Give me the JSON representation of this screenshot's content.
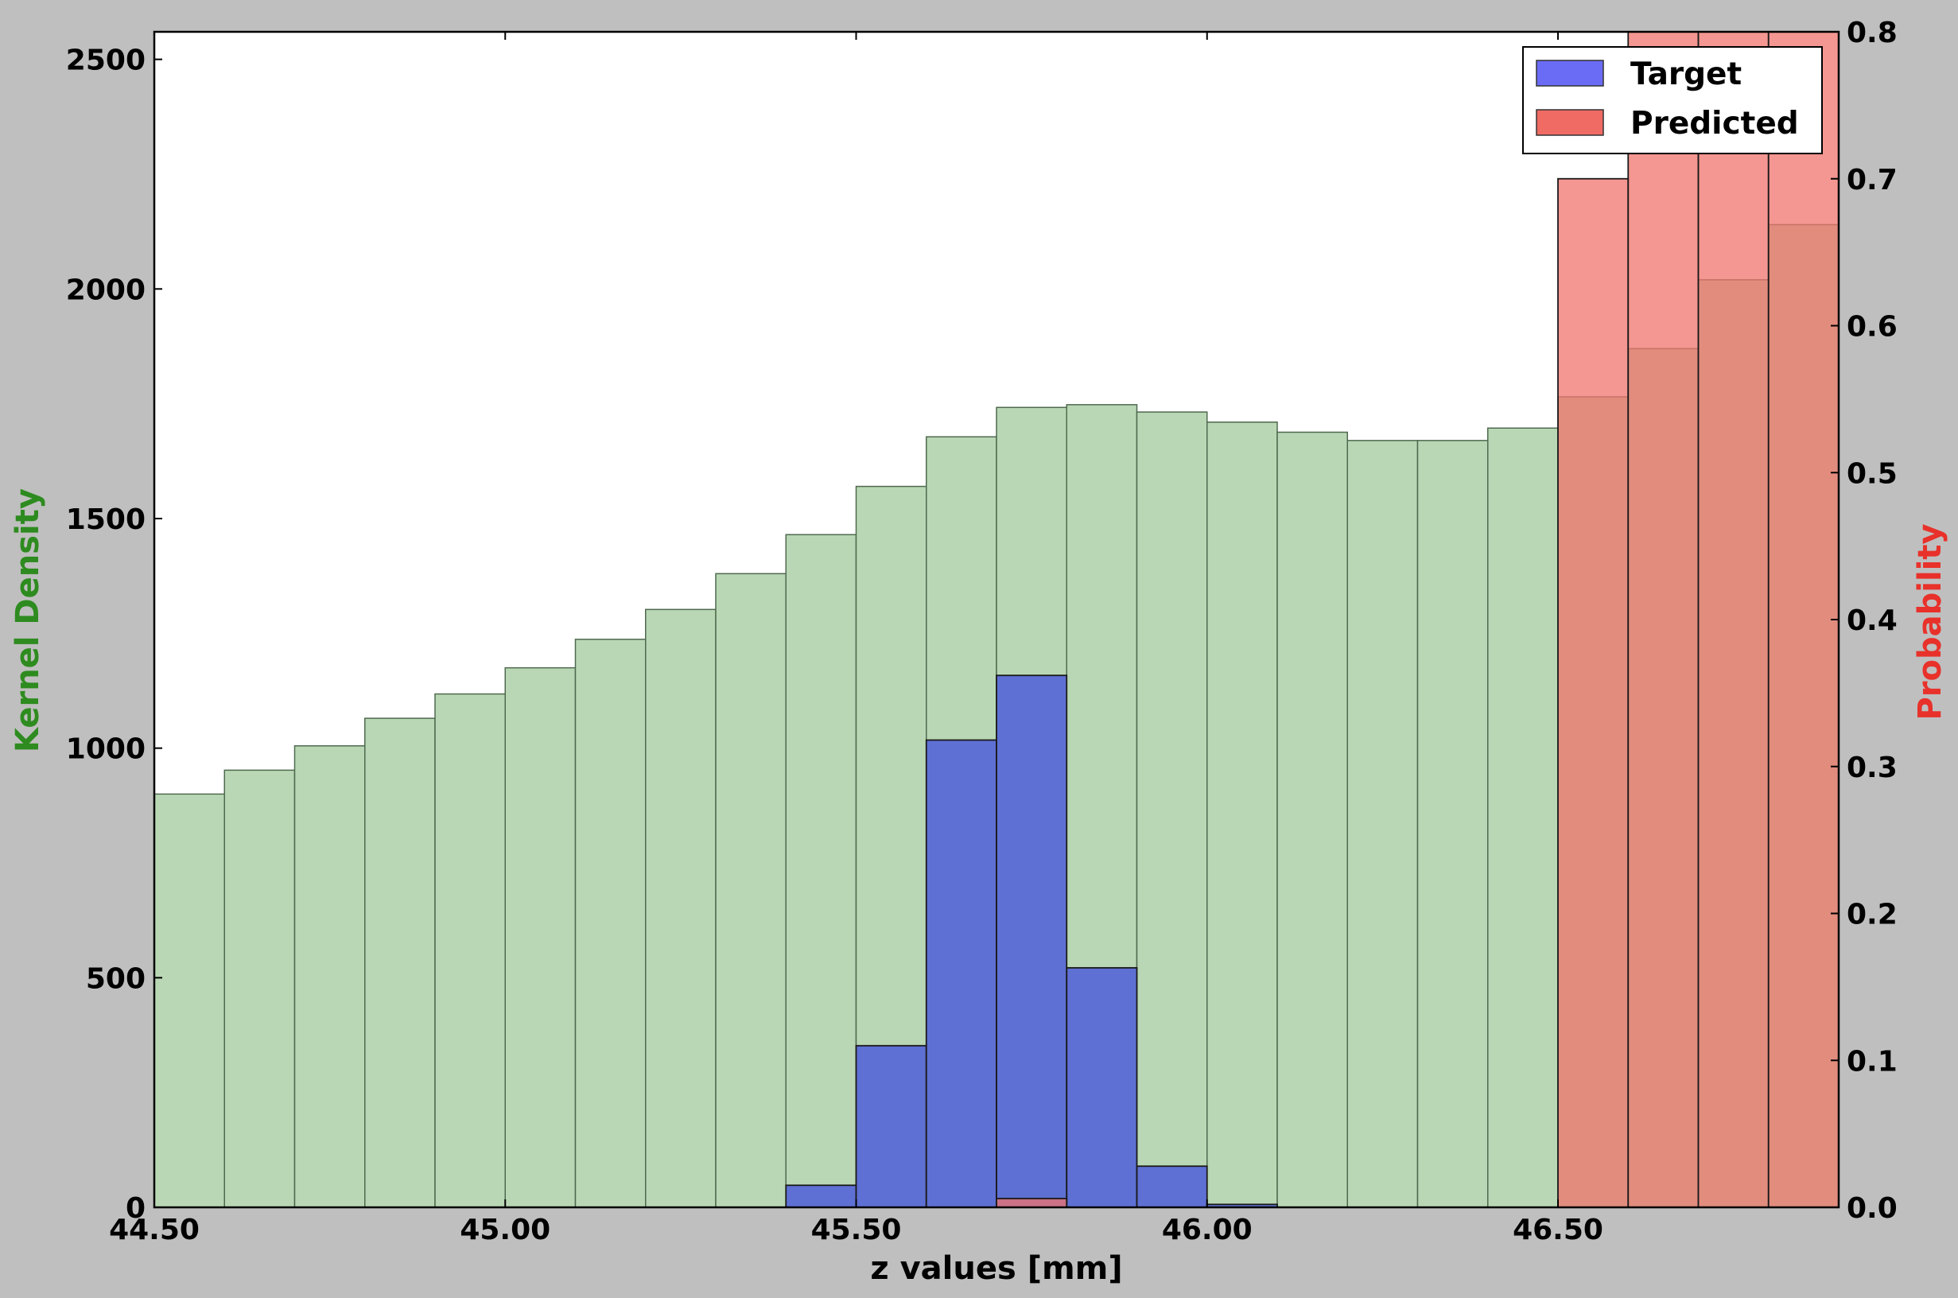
{
  "chart_data": {
    "type": "bar",
    "bin_edges": [
      44.5,
      44.6,
      44.7,
      44.8,
      44.9,
      45.0,
      45.1,
      45.2,
      45.3,
      45.4,
      45.5,
      45.6,
      45.7,
      45.8,
      45.9,
      46.0,
      46.1,
      46.2,
      46.3,
      46.4,
      46.5,
      46.6,
      46.7,
      46.8,
      46.9
    ],
    "xlabel": "z values [mm]",
    "xlim": [
      44.5,
      46.9
    ],
    "x_ticks": [
      "44.50",
      "45.00",
      "45.50",
      "46.00",
      "46.50"
    ],
    "x_tick_values": [
      44.5,
      45.0,
      45.5,
      46.0,
      46.5
    ],
    "left_axis": {
      "label": "Kernel Density",
      "color": "#2e8b1f",
      "ylim": [
        0,
        2560
      ],
      "ticks": [
        "0",
        "500",
        "1000",
        "1500",
        "2000",
        "2500"
      ],
      "tick_values": [
        0,
        500,
        1000,
        1500,
        2000,
        2500
      ]
    },
    "right_axis": {
      "label": "Probability",
      "color": "#e8312a",
      "ylim": [
        0,
        0.8
      ],
      "ticks": [
        "0.0",
        "0.1",
        "0.2",
        "0.3",
        "0.4",
        "0.5",
        "0.6",
        "0.7",
        "0.8"
      ],
      "tick_values": [
        0.0,
        0.1,
        0.2,
        0.3,
        0.4,
        0.5,
        0.6,
        0.7,
        0.8
      ]
    },
    "kernel_density": {
      "color": "#b9d7b4",
      "axis": "left",
      "values": [
        900,
        952,
        1005,
        1065,
        1118,
        1175,
        1237,
        1302,
        1380,
        1465,
        1570,
        1678,
        1742,
        1748,
        1732,
        1710,
        1688,
        1670,
        1670,
        1697,
        1765,
        1870,
        2020,
        2140
      ]
    },
    "series": [
      {
        "name": "Target",
        "color": "#4a59d9",
        "axis": "right",
        "values": [
          0,
          0,
          0,
          0,
          0,
          0,
          0,
          0,
          0,
          0.015,
          0.11,
          0.318,
          0.362,
          0.163,
          0.028,
          0.002,
          0,
          0,
          0,
          0,
          0,
          0,
          0,
          0
        ]
      },
      {
        "name": "Predicted",
        "color": "#f0736c",
        "axis": "right",
        "values": [
          0,
          0,
          0,
          0,
          0,
          0,
          0,
          0,
          0,
          0,
          0,
          0,
          0.006,
          0,
          0,
          0,
          0,
          0,
          0,
          0,
          0.7,
          0.8,
          0.8,
          0.8
        ]
      }
    ],
    "legend": {
      "position": "top-right",
      "entries": [
        {
          "label": "Target",
          "color": "#6b6cf5"
        },
        {
          "label": "Predicted",
          "color": "#ef6b64"
        }
      ]
    }
  }
}
